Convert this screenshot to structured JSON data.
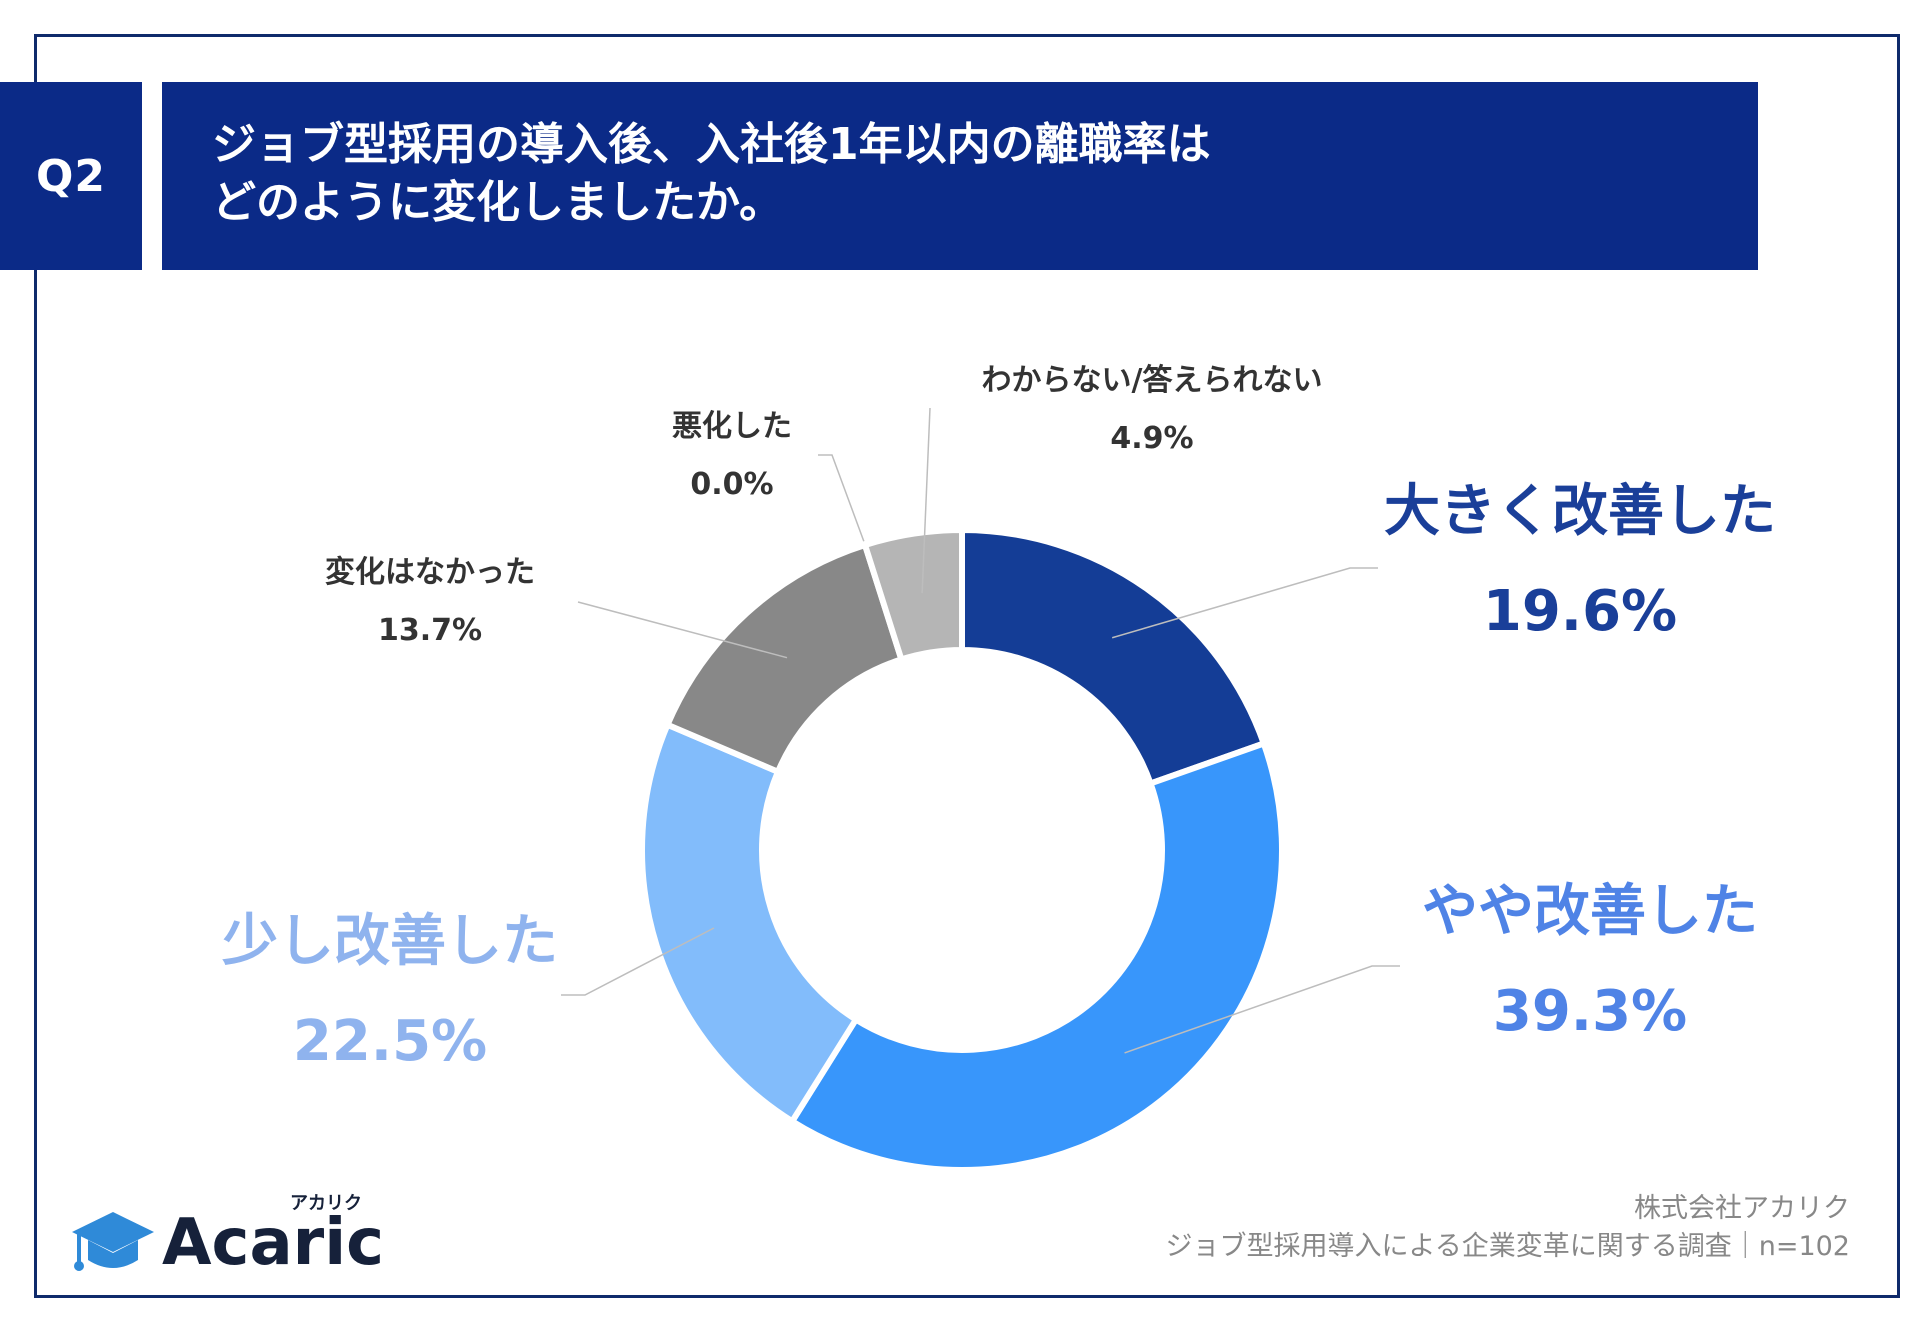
{
  "header": {
    "badge": "Q2",
    "title_line1": "ジョブ型採用の導入後、入社後1年以内の離職率は",
    "title_line2": "どのように変化しましたか。"
  },
  "colors": {
    "header_bg": "#0b2a87",
    "frame": "#0f2a6b",
    "label_dark_blue": "#1a3f99",
    "label_mid_blue": "#4f83e6",
    "label_light_blue": "#8fb3ee",
    "label_gray": "#333333"
  },
  "chart_data": {
    "type": "donut",
    "title": "ジョブ型採用の導入後、入社後1年以内の離職率はどのように変化しましたか。",
    "start": "top",
    "direction": "clockwise",
    "slices": [
      {
        "name": "大きく改善した",
        "value": 19.6,
        "label": "19.6%",
        "color": "#143d96"
      },
      {
        "name": "やや改善した",
        "value": 39.3,
        "label": "39.3%",
        "color": "#3896fb"
      },
      {
        "name": "少し改善した",
        "value": 22.5,
        "label": "22.5%",
        "color": "#82bcfb"
      },
      {
        "name": "変化はなかった",
        "value": 13.7,
        "label": "13.7%",
        "color": "#888888"
      },
      {
        "name": "悪化した",
        "value": 0.0,
        "label": "0.0%",
        "color": "#555555"
      },
      {
        "name": "わからない/答えられない",
        "value": 4.9,
        "label": "4.9%",
        "color": "#b5b5b5"
      }
    ]
  },
  "footer": {
    "company": "株式会社アカリク",
    "survey": "ジョブ型採用導入による企業変革に関する調査｜n=102"
  },
  "logo": {
    "word": "Acaric",
    "kana": "アカリク"
  }
}
